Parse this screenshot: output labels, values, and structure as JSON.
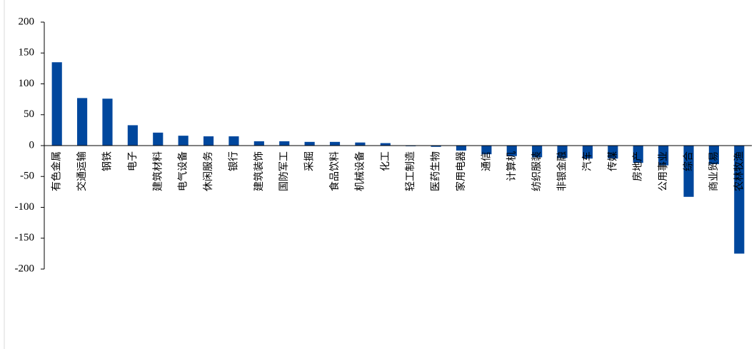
{
  "chart_data": {
    "type": "bar",
    "categories": [
      "有色金属",
      "交通运输",
      "钢铁",
      "电子",
      "建筑材料",
      "电气设备",
      "休闲服务",
      "银行",
      "建筑装饰",
      "国防军工",
      "采掘",
      "食品饮料",
      "机械设备",
      "化工",
      "轻工制造",
      "医药生物",
      "家用电器",
      "通信",
      "计算机",
      "纺织服装",
      "非银金融",
      "汽车",
      "传媒",
      "房地产",
      "公用事业",
      "综合",
      "商业贸易",
      "农林牧渔"
    ],
    "values": [
      135,
      77,
      76,
      33,
      21,
      16,
      15,
      15,
      7,
      7,
      6,
      6,
      5,
      4,
      -1,
      -2,
      -8,
      -14,
      -17,
      -19,
      -20,
      -21,
      -21,
      -28,
      -32,
      -83,
      -30,
      -175
    ],
    "color": "#00479d",
    "ylim": [
      -200,
      200
    ],
    "yticks": [
      -200,
      -150,
      -100,
      -50,
      0,
      50,
      100,
      150,
      200
    ],
    "grid": false
  }
}
